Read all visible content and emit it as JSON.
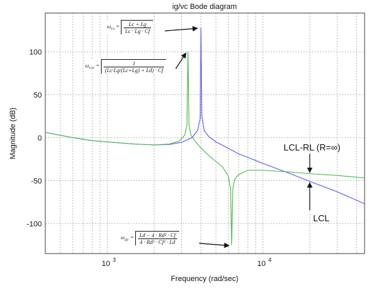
{
  "chart_data": {
    "type": "line",
    "title": "ig/vc Bode diagram",
    "xlabel": "Frequency  (rad/sec)",
    "ylabel": "Magnitude (dB)",
    "x_scale": "log",
    "xlim": [
      400,
      45000
    ],
    "ylim": [
      -135,
      145
    ],
    "xticks": [
      1000,
      10000
    ],
    "xtick_labels": [
      "10",
      "10"
    ],
    "xtick_exponents": [
      "3",
      "4"
    ],
    "yticks": [
      -100,
      -50,
      0,
      50,
      100
    ],
    "ytick_labels": [
      "-100",
      "-50",
      "0",
      "50",
      "100"
    ],
    "grid": true,
    "grid_style": "dotted",
    "series": [
      {
        "name": "LCL",
        "color": "#5a5aff",
        "x": [
          400,
          600,
          800,
          1000,
          1500,
          2000,
          2500,
          3000,
          3500,
          3800,
          3950,
          4000,
          4050,
          4200,
          4500,
          5000,
          6000,
          7000,
          8000,
          10000,
          15000,
          20000,
          30000,
          45000
        ],
        "y": [
          6,
          0,
          -3.5,
          -5,
          -7.5,
          -8.5,
          -8,
          -5.5,
          0,
          8,
          22,
          128,
          25,
          8,
          1,
          -5,
          -12.5,
          -19,
          -23,
          -30,
          -42,
          -51,
          -63,
          -77
        ]
      },
      {
        "name": "LCL-RL (R=∞)",
        "color": "#4cb84c",
        "x": [
          400,
          600,
          800,
          1000,
          1500,
          2000,
          2500,
          2900,
          3150,
          3250,
          3300,
          3350,
          3450,
          3700,
          4000,
          4500,
          5000,
          5500,
          6000,
          6200,
          6300,
          6400,
          6600,
          7000,
          8000,
          10000,
          15000,
          20000,
          30000,
          45000
        ],
        "y": [
          6,
          0,
          -3.5,
          -5,
          -7.5,
          -8.5,
          -7.5,
          -4,
          3,
          15,
          100,
          15,
          3,
          -5,
          -12,
          -21,
          -28,
          -34,
          -45,
          -60,
          -125,
          -60,
          -48,
          -43,
          -38,
          -38,
          -40,
          -42,
          -44,
          -47
        ]
      }
    ],
    "annotations": [
      {
        "text": "LCL-RL (R=∞)",
        "arrow_to": {
          "x": 20000,
          "y": -42
        }
      },
      {
        "text": "LCL",
        "arrow_to": {
          "x": 20000,
          "y": -51
        }
      }
    ],
    "formulas": {
      "w_rs": {
        "lhs": "ω",
        "sub": "rs",
        "num": "Lc + Lg",
        "den": "Lc · Lg · Cf",
        "arrow_to": {
          "x": 3950,
          "y": 128
        }
      },
      "w_rsr": {
        "lhs": "ω",
        "sub": "rsr",
        "num": "1",
        "den": "(Lc·Lg/(Lc+Lg) + Ld) · Cf",
        "arrow_to": {
          "x": 3300,
          "y": 100
        }
      },
      "w_ar": {
        "lhs": "ω",
        "sub": "ar",
        "num": "Ld − 4 · Rd² · Cf",
        "den": "4 · Rd² · Cf² · Ld",
        "arrow_to": {
          "x": 6300,
          "y": -125
        }
      }
    }
  }
}
